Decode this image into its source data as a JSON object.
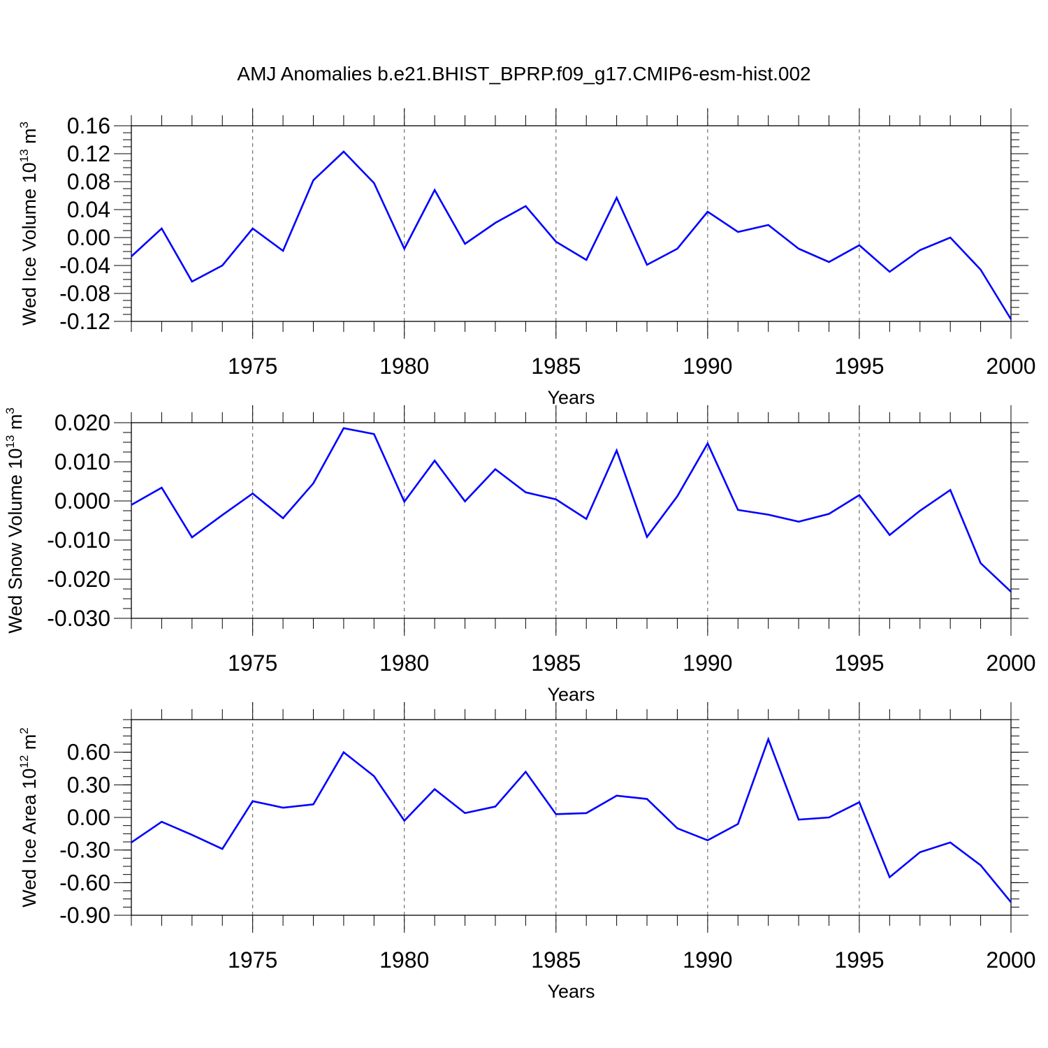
{
  "title": "AMJ Anomalies b.e21.BHIST_BPRP.f09_g17.CMIP6-esm-hist.002",
  "colors": {
    "line": "#0000ff",
    "axis": "#000000",
    "grid": "#555555",
    "background": "#ffffff"
  },
  "chart_data": [
    {
      "type": "line",
      "ylabel": {
        "base": "Wed Ice Volume 10",
        "sup": "13",
        "unit": " m",
        "unit_sup": "3"
      },
      "xlabel": "Years",
      "xlim": [
        1971,
        2000
      ],
      "xticks": [
        1975,
        1980,
        1985,
        1990,
        1995,
        2000
      ],
      "ylim": [
        -0.12,
        0.16
      ],
      "yticks": [
        "0.16",
        "0.12",
        "0.08",
        "0.04",
        "0.00",
        "-0.04",
        "-0.08",
        "-0.12"
      ],
      "x": [
        1971,
        1972,
        1973,
        1974,
        1975,
        1976,
        1977,
        1978,
        1979,
        1980,
        1981,
        1982,
        1983,
        1984,
        1985,
        1986,
        1987,
        1988,
        1989,
        1990,
        1991,
        1992,
        1993,
        1994,
        1995,
        1996,
        1997,
        1998,
        1999,
        2000
      ],
      "series": [
        {
          "name": "Wed Ice Volume",
          "values": [
            -0.027,
            0.013,
            -0.063,
            -0.04,
            0.013,
            -0.019,
            0.082,
            0.123,
            0.078,
            -0.016,
            0.068,
            -0.009,
            0.021,
            0.045,
            -0.006,
            -0.032,
            0.057,
            -0.039,
            -0.016,
            0.037,
            0.008,
            0.018,
            -0.016,
            -0.035,
            -0.011,
            -0.049,
            -0.018,
            0.0,
            -0.046,
            -0.117
          ]
        }
      ]
    },
    {
      "type": "line",
      "ylabel": {
        "base": "Wed Snow Volume 10",
        "sup": "13",
        "unit": " m",
        "unit_sup": "3"
      },
      "xlabel": "Years",
      "xlim": [
        1971,
        2000
      ],
      "xticks": [
        1975,
        1980,
        1985,
        1990,
        1995,
        2000
      ],
      "ylim": [
        -0.03,
        0.02
      ],
      "yticks": [
        "0.020",
        "0.010",
        "0.000",
        "-0.010",
        "-0.020",
        "-0.030"
      ],
      "x": [
        1971,
        1972,
        1973,
        1974,
        1975,
        1976,
        1977,
        1978,
        1979,
        1980,
        1981,
        1982,
        1983,
        1984,
        1985,
        1986,
        1987,
        1988,
        1989,
        1990,
        1991,
        1992,
        1993,
        1994,
        1995,
        1996,
        1997,
        1998,
        1999,
        2000
      ],
      "series": [
        {
          "name": "Wed Snow Volume",
          "values": [
            -0.001,
            0.0034,
            -0.0093,
            -0.0036,
            0.0019,
            -0.0044,
            0.0045,
            0.0186,
            0.0171,
            -0.0002,
            0.0103,
            -0.0001,
            0.0081,
            0.0022,
            0.0004,
            -0.0046,
            0.0129,
            -0.0092,
            0.0012,
            0.0147,
            -0.0023,
            -0.0035,
            -0.0053,
            -0.0033,
            0.0015,
            -0.0087,
            -0.0025,
            0.0028,
            -0.0159,
            -0.0232
          ]
        }
      ]
    },
    {
      "type": "line",
      "ylabel": {
        "base": "Wed Ice Area 10",
        "sup": "12",
        "unit": " m",
        "unit_sup": "2"
      },
      "xlabel": "Years",
      "xlim": [
        1971,
        2000
      ],
      "xticks": [
        1975,
        1980,
        1985,
        1990,
        1995,
        2000
      ],
      "ylim": [
        -0.9,
        0.9
      ],
      "yticks": [
        "0.60",
        "0.30",
        "0.00",
        "-0.30",
        "-0.60",
        "-0.90"
      ],
      "x": [
        1971,
        1972,
        1973,
        1974,
        1975,
        1976,
        1977,
        1978,
        1979,
        1980,
        1981,
        1982,
        1983,
        1984,
        1985,
        1986,
        1987,
        1988,
        1989,
        1990,
        1991,
        1992,
        1993,
        1994,
        1995,
        1996,
        1997,
        1998,
        1999,
        2000
      ],
      "series": [
        {
          "name": "Wed Ice Area",
          "values": [
            -0.23,
            -0.04,
            -0.16,
            -0.29,
            0.15,
            0.09,
            0.12,
            0.6,
            0.38,
            -0.03,
            0.26,
            0.04,
            0.1,
            0.42,
            0.03,
            0.04,
            0.2,
            0.17,
            -0.1,
            -0.21,
            -0.06,
            0.72,
            -0.02,
            0.0,
            0.14,
            -0.55,
            -0.32,
            -0.23,
            -0.44,
            -0.78
          ]
        }
      ]
    }
  ]
}
